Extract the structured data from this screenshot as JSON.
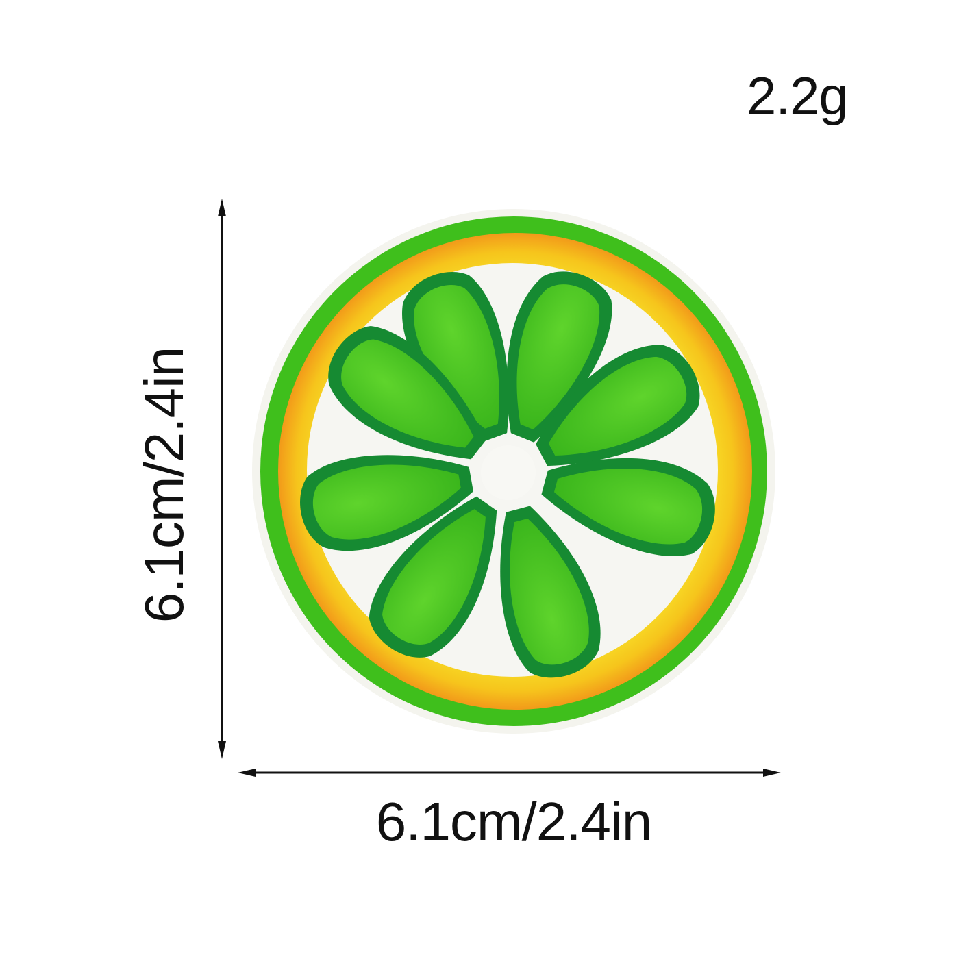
{
  "product": {
    "weight": "2.2g",
    "width_label": "6.1cm/2.4in",
    "height_label": "6.1cm/2.4in"
  },
  "image": {
    "subject": "lime-slice-icon"
  },
  "colors": {
    "outer_green": "#3fbf1c",
    "dark_green": "#168a32",
    "segment_green": "#46c41e",
    "rind_yellow": "#f7d81a",
    "rind_orange": "#f4a21a",
    "pith_white": "#f6f6f2",
    "text": "#111111"
  }
}
